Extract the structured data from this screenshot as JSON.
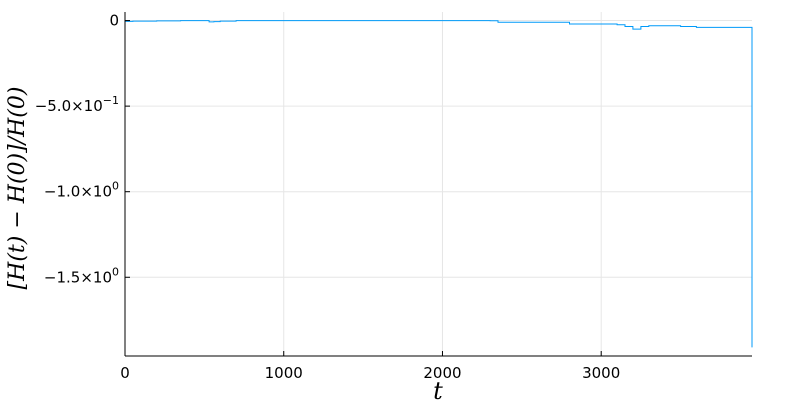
{
  "chart_data": {
    "type": "line",
    "xlabel": "t",
    "ylabel": "[H(t) − H(0)]/H(0)",
    "xlim": [
      0,
      3950
    ],
    "ylim": [
      -1.96,
      0.05
    ],
    "grid": true,
    "legend": "none",
    "colors": {
      "series": "#009af9",
      "grid": "#e6e6e6",
      "axis": "#000000"
    },
    "x_ticks": [
      {
        "value": 0,
        "label": "0"
      },
      {
        "value": 1000,
        "label": "1000"
      },
      {
        "value": 2000,
        "label": "2000"
      },
      {
        "value": 3000,
        "label": "3000"
      }
    ],
    "y_ticks": [
      {
        "value": 0,
        "mant": "0",
        "exp": ""
      },
      {
        "value": -0.5,
        "mant": "−5.0×10",
        "exp": "−1"
      },
      {
        "value": -1.0,
        "mant": "−1.0×10",
        "exp": "0"
      },
      {
        "value": -1.5,
        "mant": "−1.5×10",
        "exp": "0"
      }
    ],
    "series": [
      {
        "step": true,
        "x": [
          0,
          50,
          200,
          350,
          530,
          560,
          600,
          700,
          2300,
          2350,
          2650,
          2800,
          3000,
          3100,
          3150,
          3200,
          3250,
          3300,
          3500,
          3600,
          3950,
          3950
        ],
        "y": [
          -0.005,
          -0.003,
          -0.002,
          0.0,
          -0.008,
          -0.006,
          -0.003,
          0.0,
          -0.001,
          -0.01,
          -0.01,
          -0.02,
          -0.02,
          -0.025,
          -0.035,
          -0.05,
          -0.035,
          -0.03,
          -0.035,
          -0.04,
          -0.04,
          -1.91
        ]
      }
    ]
  }
}
